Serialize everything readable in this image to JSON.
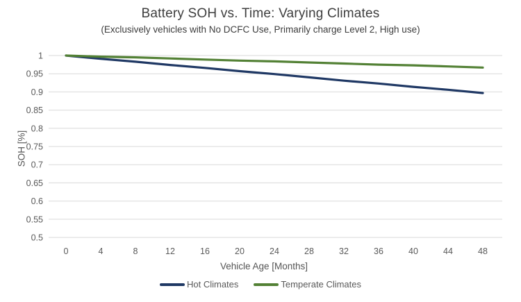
{
  "chart_data": {
    "type": "line",
    "title": "Battery SOH vs. Time: Varying Climates",
    "subtitle": "(Exclusively vehicles with No DCFC Use, Primarily charge Level 2, High use)",
    "xlabel": "Vehicle Age [Months]",
    "ylabel": "SOH [%]",
    "xlim": [
      0,
      48
    ],
    "ylim": [
      0.5,
      1.0
    ],
    "grid": "horizontal",
    "grid_color": "#d9d9d9",
    "tick_text_color": "#595959",
    "legend_position": "bottom",
    "x": [
      0,
      4,
      8,
      12,
      16,
      20,
      24,
      28,
      32,
      36,
      40,
      44,
      48
    ],
    "x_tick_labels": [
      "0",
      "4",
      "8",
      "12",
      "16",
      "20",
      "24",
      "28",
      "32",
      "36",
      "40",
      "44",
      "48"
    ],
    "y_tick_values": [
      1,
      0.95,
      0.9,
      0.85,
      0.8,
      0.75,
      0.7,
      0.65,
      0.6,
      0.55,
      0.5
    ],
    "y_tick_labels": [
      "1",
      "0.95",
      "0.9",
      "0.85",
      "0.8",
      "0.75",
      "0.7",
      "0.65",
      "0.6",
      "0.55",
      "0.5"
    ],
    "series": [
      {
        "name": "Hot Climates",
        "color": "#1f3864",
        "values": [
          1.0,
          0.991,
          0.983,
          0.974,
          0.966,
          0.957,
          0.949,
          0.94,
          0.931,
          0.923,
          0.914,
          0.906,
          0.897
        ]
      },
      {
        "name": "Temperate Climates",
        "color": "#538135",
        "values": [
          1.0,
          0.997,
          0.995,
          0.992,
          0.989,
          0.986,
          0.984,
          0.981,
          0.978,
          0.975,
          0.973,
          0.97,
          0.967
        ]
      }
    ]
  }
}
